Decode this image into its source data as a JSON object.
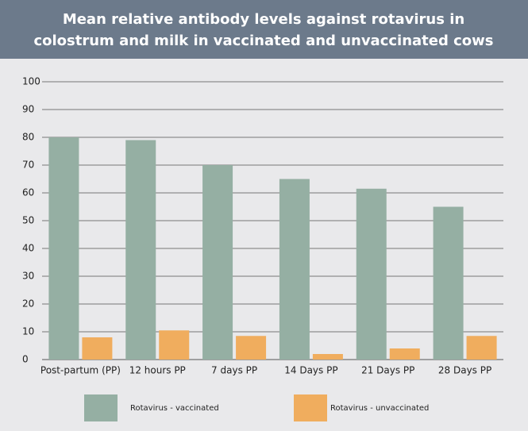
{
  "chart_data": {
    "type": "bar",
    "title": [
      "Mean relative antibody levels against rotavirus in",
      "colostrum and milk in vaccinated and unvaccinated cows"
    ],
    "categories": [
      "Post-partum (PP)",
      "12 hours PP",
      "7 days PP",
      "14 Days PP",
      "21 Days PP",
      "28 Days PP"
    ],
    "series": [
      {
        "name": "Rotavirus - vaccinated",
        "color": "#95afa3",
        "values": [
          80,
          79,
          70,
          65,
          61.5,
          55
        ]
      },
      {
        "name": "Rotavirus - unvaccinated",
        "color": "#f0ad5e",
        "values": [
          8,
          10.5,
          8.5,
          2,
          4,
          8.5
        ]
      }
    ],
    "ylim": [
      0,
      100
    ],
    "yticks": [
      0,
      10,
      20,
      30,
      40,
      50,
      60,
      70,
      80,
      90,
      100
    ],
    "grid": true
  }
}
